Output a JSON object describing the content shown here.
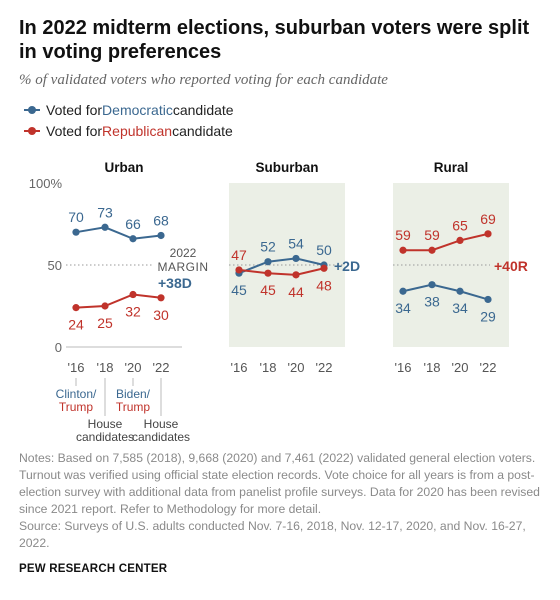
{
  "title": "In 2022 midterm elections, suburban voters were split in voting preferences",
  "subtitle": "% of validated voters who reported voting for each candidate",
  "legend": {
    "dem_prefix": "Voted for ",
    "dem_party": "Democratic",
    "dem_suffix": " candidate",
    "rep_prefix": "Voted for ",
    "rep_party": "Republican",
    "rep_suffix": " candidate"
  },
  "colors": {
    "dem": "#3b6890",
    "rep": "#c0332b",
    "panel": "#ebefe6"
  },
  "chart_data": {
    "type": "line",
    "x": [
      "'16",
      "'18",
      "'20",
      "'22"
    ],
    "ylim": [
      0,
      100
    ],
    "y_ticks": [
      "0",
      "50",
      "100%"
    ],
    "margin_label": [
      "2022",
      "MARGIN"
    ],
    "x_annotations": [
      {
        "x": "'16",
        "lines": [
          "Clinton/",
          "Trump"
        ],
        "style": "colored"
      },
      {
        "x": "'18",
        "lines": [
          "House",
          "candidates"
        ],
        "style": "plain"
      },
      {
        "x": "'20",
        "lines": [
          "Biden/",
          "Trump"
        ],
        "style": "colored"
      },
      {
        "x": "'22",
        "lines": [
          "House",
          "candidates"
        ],
        "style": "plain"
      }
    ],
    "panels": [
      {
        "title": "Urban",
        "series": [
          {
            "party": "dem",
            "values": [
              70,
              73,
              66,
              68
            ]
          },
          {
            "party": "rep",
            "values": [
              24,
              25,
              32,
              30
            ]
          }
        ],
        "margin": "+38D",
        "margin_party": "dem"
      },
      {
        "title": "Suburban",
        "series": [
          {
            "party": "dem",
            "values": [
              45,
              52,
              54,
              50
            ]
          },
          {
            "party": "rep",
            "values": [
              47,
              45,
              44,
              48
            ]
          }
        ],
        "margin": "+2D",
        "margin_party": "dem"
      },
      {
        "title": "Rural",
        "series": [
          {
            "party": "dem",
            "values": [
              34,
              38,
              34,
              29
            ]
          },
          {
            "party": "rep",
            "values": [
              59,
              59,
              65,
              69
            ]
          }
        ],
        "margin": "+40R",
        "margin_party": "rep"
      }
    ]
  },
  "notes": [
    "Notes: Based on 7,585 (2018), 9,668 (2020) and 7,461 (2022) validated general election voters. Turnout was verified using official state election records. Vote choice for all years is from a post-election survey with additional data from panelist profile surveys. Data for 2020 has been revised since 2021 report. Refer to Methodology for more detail.",
    "Source: Surveys of U.S. adults conducted Nov. 7-16, 2018, Nov. 12-17, 2020, and Nov. 16-27, 2022."
  ],
  "footer": "PEW RESEARCH CENTER"
}
